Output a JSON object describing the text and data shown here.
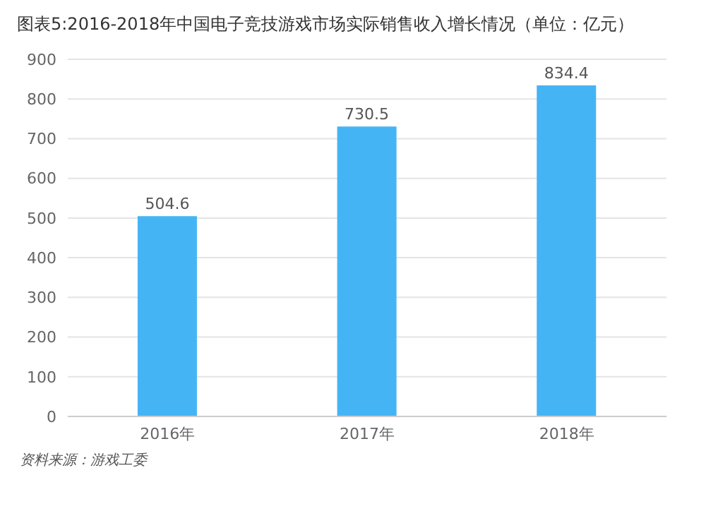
{
  "chart_data": {
    "type": "bar",
    "title": "图表5:2016-2018年中国电子竞技游戏市场实际销售收入增长情况（单位：亿元）",
    "categories": [
      "2016年",
      "2017年",
      "2018年"
    ],
    "values": [
      504.6,
      730.5,
      834.4
    ],
    "color": "#45b4f4",
    "ylim": [
      0,
      900
    ],
    "yticks": [
      0,
      100,
      200,
      300,
      400,
      500,
      600,
      700,
      800,
      900
    ],
    "grid": "y",
    "data_labels": true,
    "annotations": [
      "资料来源：游戏工委"
    ]
  }
}
